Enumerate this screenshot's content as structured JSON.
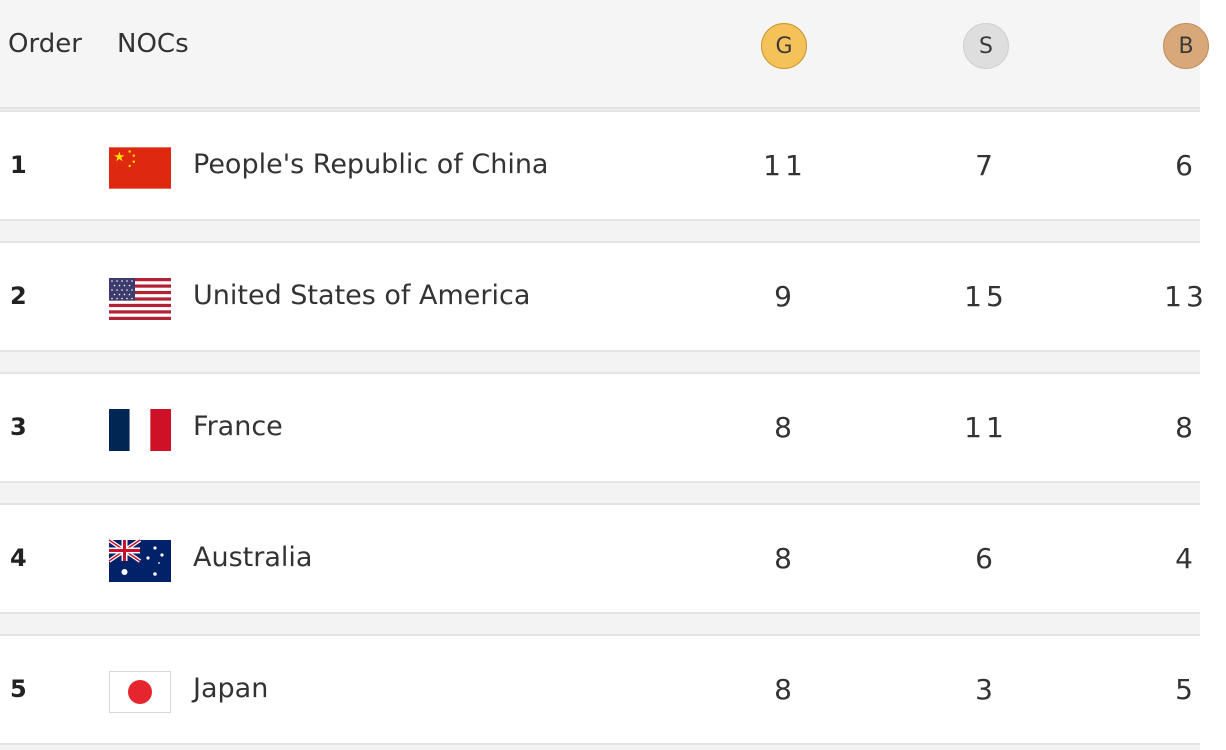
{
  "header": {
    "order_label": "Order",
    "nocs_label": "NOCs",
    "gold_label": "G",
    "silver_label": "S",
    "bronze_label": "B",
    "colors": {
      "gold": "#f5c25a",
      "silver": "#dedede",
      "bronze": "#d9a878"
    }
  },
  "rows": [
    {
      "order": "1",
      "noc": "People's Republic of China",
      "flag_icon": "china-flag-icon",
      "gold": "11",
      "silver": "7",
      "bronze": "6"
    },
    {
      "order": "2",
      "noc": "United States of America",
      "flag_icon": "usa-flag-icon",
      "gold": "9",
      "silver": "15",
      "bronze": "13"
    },
    {
      "order": "3",
      "noc": "France",
      "flag_icon": "france-flag-icon",
      "gold": "8",
      "silver": "11",
      "bronze": "8"
    },
    {
      "order": "4",
      "noc": "Australia",
      "flag_icon": "australia-flag-icon",
      "gold": "8",
      "silver": "6",
      "bronze": "4"
    },
    {
      "order": "5",
      "noc": "Japan",
      "flag_icon": "japan-flag-icon",
      "gold": "8",
      "silver": "3",
      "bronze": "5"
    }
  ]
}
